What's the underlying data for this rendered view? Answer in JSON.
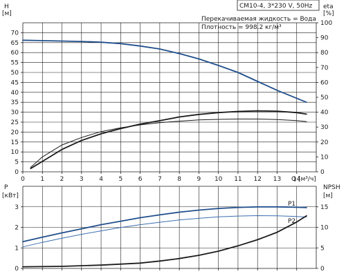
{
  "chart_data": [
    {
      "type": "line",
      "title": "CM10-4, 3*230 V, 50Hz",
      "annotations": [
        "Перекачиваемая жидкость = Вода",
        "Плотность = 998.2 кг/м³"
      ],
      "y_label": "H",
      "y_unit": "[м]",
      "y2_label": "eta",
      "y2_unit": "[%]",
      "x_label": "Q",
      "x_unit": "[м³/ч]",
      "xlim": [
        0,
        15
      ],
      "ylim": [
        0,
        75
      ],
      "y2lim": [
        0,
        100
      ],
      "x_ticks": [
        0,
        1,
        2,
        3,
        4,
        5,
        6,
        7,
        8,
        9,
        10,
        11,
        12,
        13,
        14
      ],
      "y_ticks": [
        0,
        5,
        10,
        15,
        20,
        25,
        30,
        35,
        40,
        45,
        50,
        55,
        60,
        65,
        70
      ],
      "y2_ticks": [
        0,
        10,
        20,
        30,
        40,
        50,
        60,
        70,
        80,
        90,
        100
      ],
      "grid": true,
      "series": [
        {
          "axis": "left",
          "color": "#1f4e8c",
          "x": [
            0,
            1,
            2,
            3,
            4,
            5,
            6,
            7,
            8,
            9,
            10,
            11,
            12,
            13,
            14.5
          ],
          "y": [
            66.2,
            66,
            65.8,
            65.6,
            65.2,
            64.5,
            63.3,
            61.8,
            59.5,
            56.8,
            53.5,
            50,
            45.5,
            41,
            35
          ]
        },
        {
          "axis": "right",
          "color": "#1a1a1a",
          "x": [
            0.4,
            1,
            2,
            3,
            4,
            5,
            6,
            7,
            8,
            9,
            10,
            11,
            12,
            13,
            14,
            14.5
          ],
          "y": [
            3,
            10,
            18,
            23,
            27,
            29.5,
            31.5,
            33,
            34,
            34.8,
            35.2,
            35.4,
            35.4,
            35.1,
            34.4,
            33.7
          ]
        },
        {
          "axis": "right",
          "color": "#1a1a1a",
          "x": [
            0.4,
            1,
            2,
            3,
            4,
            5,
            6,
            7,
            8,
            9,
            10,
            11,
            12,
            13,
            14,
            14.5
          ],
          "y": [
            2.2,
            7,
            15,
            21,
            25.5,
            29,
            32,
            34.3,
            36.8,
            38.5,
            39.7,
            40.5,
            40.9,
            40.7,
            39.7,
            38.7
          ]
        }
      ]
    },
    {
      "type": "line",
      "y_label": "P",
      "y_unit": "[кВт]",
      "y2_label": "NPSH",
      "y2_unit": "[м]",
      "xlim": [
        0,
        15
      ],
      "ylim": [
        0,
        4
      ],
      "y2lim": [
        0,
        20
      ],
      "y_ticks": [
        0,
        1,
        2,
        3
      ],
      "y2_ticks": [
        0,
        5,
        10,
        15
      ],
      "grid": true,
      "series": [
        {
          "name": "P1",
          "axis": "left",
          "color": "#1f4e8c",
          "x": [
            0,
            1,
            2,
            3,
            4,
            5,
            6,
            7,
            8,
            9,
            10,
            11,
            12,
            13,
            14,
            14.5
          ],
          "y": [
            1.3,
            1.52,
            1.73,
            1.93,
            2.13,
            2.3,
            2.47,
            2.61,
            2.74,
            2.84,
            2.92,
            2.97,
            3,
            3,
            2.98,
            2.96
          ]
        },
        {
          "name": "P2",
          "axis": "left",
          "color": "#3a6db0",
          "x": [
            0,
            1,
            2,
            3,
            4,
            5,
            6,
            7,
            8,
            9,
            10,
            11,
            12,
            13,
            14,
            14.5
          ],
          "y": [
            1.05,
            1.27,
            1.47,
            1.66,
            1.83,
            1.99,
            2.13,
            2.25,
            2.36,
            2.44,
            2.51,
            2.55,
            2.57,
            2.56,
            2.53,
            2.5
          ]
        },
        {
          "axis": "right",
          "color": "#1a1a1a",
          "x": [
            0,
            2,
            4,
            6,
            7,
            8,
            9,
            10,
            11,
            12,
            13,
            14,
            14.5
          ],
          "y": [
            0.4,
            0.5,
            0.8,
            1.3,
            1.8,
            2.4,
            3.2,
            4.2,
            5.5,
            7,
            8.8,
            11.3,
            12.8
          ]
        }
      ]
    }
  ]
}
